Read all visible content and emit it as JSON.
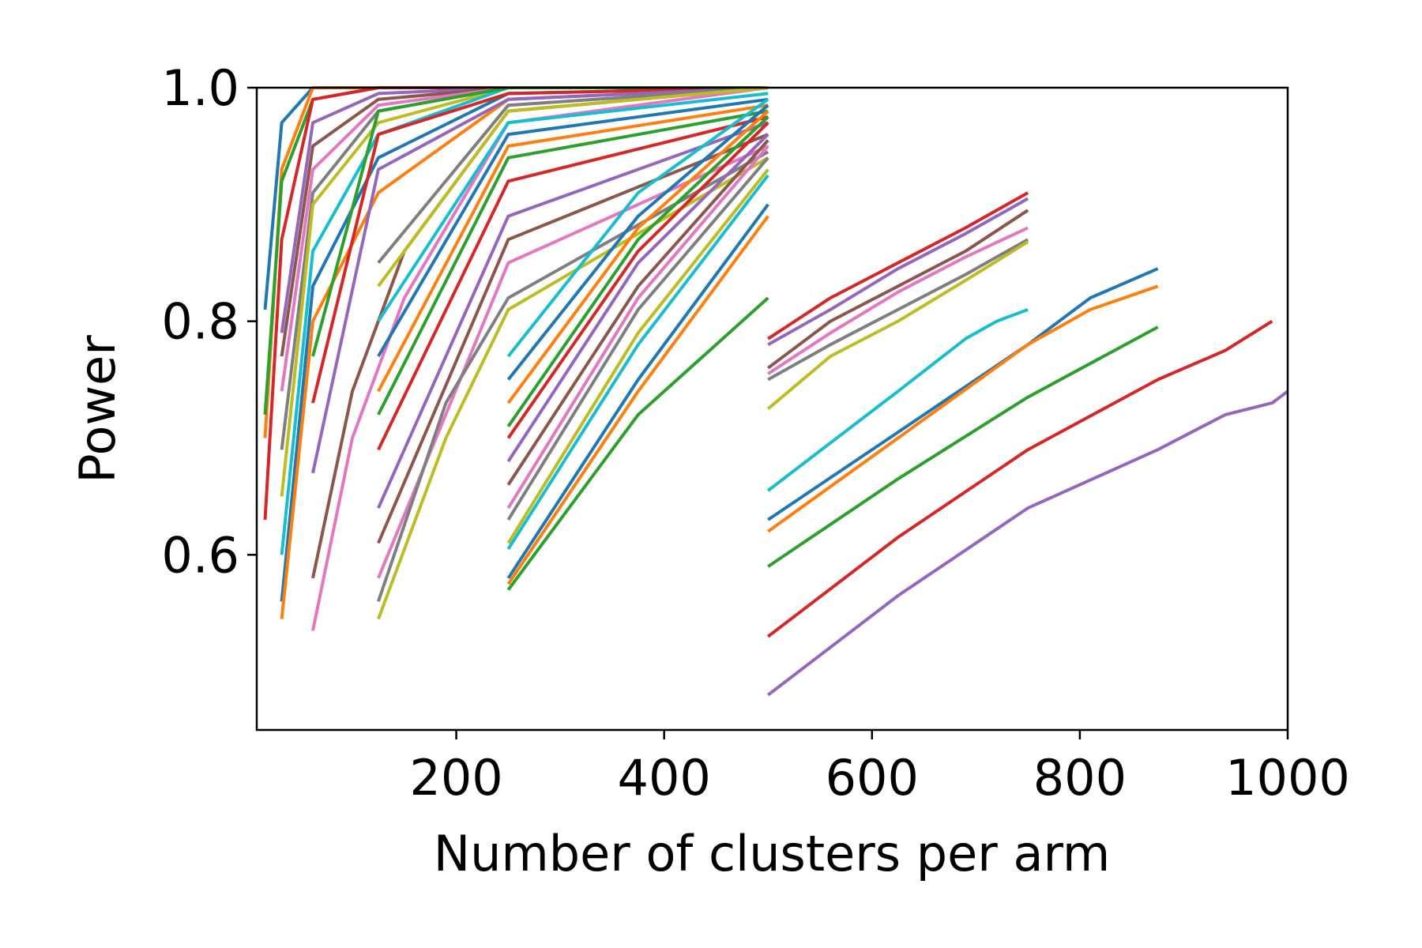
{
  "chart_data": {
    "type": "line",
    "title": "",
    "xlabel": "Number of clusters per arm",
    "ylabel": "Power",
    "xlim": [
      8,
      1000
    ],
    "ylim": [
      0.45,
      1.0
    ],
    "xticks": [
      {
        "value": 200,
        "label": "200"
      },
      {
        "value": 400,
        "label": "400"
      },
      {
        "value": 600,
        "label": "600"
      },
      {
        "value": 800,
        "label": "800"
      },
      {
        "value": 1000,
        "label": "1000"
      }
    ],
    "yticks": [
      {
        "value": 0.6,
        "label": "0.6"
      },
      {
        "value": 0.8,
        "label": "0.8"
      },
      {
        "value": 1.0,
        "label": "1.0"
      }
    ],
    "grid": false,
    "legend": "none",
    "color_cycle": [
      "#1f77b4",
      "#ff7f0e",
      "#2ca02c",
      "#d62728",
      "#9467bd",
      "#8c564b",
      "#e377c2",
      "#7f7f7f",
      "#bcbd22",
      "#17becf"
    ],
    "series": [
      {
        "x": [
          16,
          32,
          62,
          125,
          250
        ],
        "y": [
          0.81,
          0.97,
          1.0,
          1.0,
          1.0
        ]
      },
      {
        "x": [
          16,
          32,
          62,
          125,
          250
        ],
        "y": [
          0.7,
          0.93,
          1.0,
          1.0,
          1.0
        ]
      },
      {
        "x": [
          16,
          32,
          62,
          125,
          250
        ],
        "y": [
          0.72,
          0.92,
          0.99,
          1.0,
          1.0
        ]
      },
      {
        "x": [
          16,
          32,
          62,
          125,
          250
        ],
        "y": [
          0.63,
          0.87,
          0.99,
          1.0,
          1.0
        ]
      },
      {
        "x": [
          32,
          62,
          125,
          250,
          500
        ],
        "y": [
          0.79,
          0.97,
          0.995,
          1.0,
          1.0
        ]
      },
      {
        "x": [
          32,
          62,
          125,
          250,
          500
        ],
        "y": [
          0.77,
          0.95,
          0.99,
          1.0,
          1.0
        ]
      },
      {
        "x": [
          32,
          62,
          125,
          250,
          500
        ],
        "y": [
          0.74,
          0.93,
          0.985,
          1.0,
          1.0
        ]
      },
      {
        "x": [
          32,
          62,
          125,
          250,
          500
        ],
        "y": [
          0.69,
          0.91,
          0.98,
          1.0,
          1.0
        ]
      },
      {
        "x": [
          32,
          62,
          125,
          250,
          500
        ],
        "y": [
          0.65,
          0.9,
          0.97,
          1.0,
          1.0
        ]
      },
      {
        "x": [
          32,
          62,
          125,
          250,
          500
        ],
        "y": [
          0.6,
          0.86,
          0.96,
          1.0,
          1.0
        ]
      },
      {
        "x": [
          32,
          62,
          125,
          250,
          500
        ],
        "y": [
          0.56,
          0.83,
          0.94,
          0.995,
          1.0
        ]
      },
      {
        "x": [
          32,
          62,
          125,
          250,
          500
        ],
        "y": [
          0.545,
          0.8,
          0.91,
          0.99,
          1.0
        ]
      },
      {
        "x": [
          62,
          125,
          250,
          500
        ],
        "y": [
          0.77,
          0.98,
          1.0,
          1.0
        ]
      },
      {
        "x": [
          62,
          125,
          250,
          500
        ],
        "y": [
          0.73,
          0.96,
          0.995,
          1.0
        ]
      },
      {
        "x": [
          62,
          125,
          250,
          500
        ],
        "y": [
          0.67,
          0.93,
          0.99,
          1.0
        ]
      },
      {
        "x": [
          62,
          100,
          150,
          250,
          500
        ],
        "y": [
          0.58,
          0.74,
          0.86,
          0.98,
          1.0
        ]
      },
      {
        "x": [
          62,
          100,
          150,
          250,
          500
        ],
        "y": [
          0.535,
          0.7,
          0.82,
          0.97,
          1.0
        ]
      },
      {
        "x": [
          125,
          250,
          500
        ],
        "y": [
          0.85,
          0.985,
          1.0
        ]
      },
      {
        "x": [
          125,
          250,
          500
        ],
        "y": [
          0.83,
          0.98,
          1.0
        ]
      },
      {
        "x": [
          125,
          250,
          500
        ],
        "y": [
          0.8,
          0.97,
          0.995
        ]
      },
      {
        "x": [
          125,
          250,
          500
        ],
        "y": [
          0.77,
          0.96,
          0.99
        ]
      },
      {
        "x": [
          125,
          250,
          500
        ],
        "y": [
          0.74,
          0.95,
          0.985
        ]
      },
      {
        "x": [
          125,
          250,
          500
        ],
        "y": [
          0.72,
          0.94,
          0.98
        ]
      },
      {
        "x": [
          125,
          250,
          500
        ],
        "y": [
          0.69,
          0.92,
          0.975
        ]
      },
      {
        "x": [
          125,
          250,
          500
        ],
        "y": [
          0.64,
          0.89,
          0.97
        ]
      },
      {
        "x": [
          125,
          250,
          500
        ],
        "y": [
          0.61,
          0.87,
          0.96
        ]
      },
      {
        "x": [
          125,
          250,
          500
        ],
        "y": [
          0.58,
          0.85,
          0.95
        ]
      },
      {
        "x": [
          125,
          190,
          250,
          500
        ],
        "y": [
          0.56,
          0.73,
          0.82,
          0.945
        ]
      },
      {
        "x": [
          125,
          190,
          250,
          500
        ],
        "y": [
          0.545,
          0.7,
          0.81,
          0.94
        ]
      },
      {
        "x": [
          250,
          375,
          500
        ],
        "y": [
          0.77,
          0.91,
          0.99
        ]
      },
      {
        "x": [
          250,
          375,
          500
        ],
        "y": [
          0.75,
          0.89,
          0.985
        ]
      },
      {
        "x": [
          250,
          375,
          500
        ],
        "y": [
          0.73,
          0.88,
          0.98
        ]
      },
      {
        "x": [
          250,
          375,
          500
        ],
        "y": [
          0.71,
          0.87,
          0.975
        ]
      },
      {
        "x": [
          250,
          375,
          500
        ],
        "y": [
          0.7,
          0.86,
          0.97
        ]
      },
      {
        "x": [
          250,
          375,
          500
        ],
        "y": [
          0.68,
          0.85,
          0.96
        ]
      },
      {
        "x": [
          250,
          375,
          500
        ],
        "y": [
          0.66,
          0.83,
          0.955
        ]
      },
      {
        "x": [
          250,
          375,
          500
        ],
        "y": [
          0.64,
          0.82,
          0.95
        ]
      },
      {
        "x": [
          250,
          375,
          500
        ],
        "y": [
          0.63,
          0.81,
          0.94
        ]
      },
      {
        "x": [
          250,
          375,
          500
        ],
        "y": [
          0.61,
          0.79,
          0.93
        ]
      },
      {
        "x": [
          250,
          375,
          500
        ],
        "y": [
          0.605,
          0.78,
          0.925
        ]
      },
      {
        "x": [
          250,
          375,
          500
        ],
        "y": [
          0.58,
          0.75,
          0.9
        ]
      },
      {
        "x": [
          250,
          375,
          500
        ],
        "y": [
          0.575,
          0.74,
          0.89
        ]
      },
      {
        "x": [
          250,
          375,
          500
        ],
        "y": [
          0.57,
          0.72,
          0.82
        ]
      },
      {
        "x": [
          500,
          560,
          625,
          690,
          750
        ],
        "y": [
          0.785,
          0.82,
          0.85,
          0.88,
          0.91
        ]
      },
      {
        "x": [
          500,
          560,
          625,
          690,
          750
        ],
        "y": [
          0.78,
          0.81,
          0.845,
          0.875,
          0.905
        ]
      },
      {
        "x": [
          500,
          560,
          625,
          690,
          750
        ],
        "y": [
          0.76,
          0.8,
          0.83,
          0.86,
          0.895
        ]
      },
      {
        "x": [
          500,
          560,
          625,
          690,
          750
        ],
        "y": [
          0.755,
          0.79,
          0.825,
          0.855,
          0.88
        ]
      },
      {
        "x": [
          500,
          560,
          625,
          690,
          750
        ],
        "y": [
          0.75,
          0.78,
          0.81,
          0.84,
          0.87
        ]
      },
      {
        "x": [
          500,
          560,
          625,
          690,
          750
        ],
        "y": [
          0.725,
          0.77,
          0.8,
          0.835,
          0.868
        ]
      },
      {
        "x": [
          500,
          625,
          690,
          720,
          750
        ],
        "y": [
          0.655,
          0.74,
          0.785,
          0.8,
          0.81
        ]
      },
      {
        "x": [
          500,
          625,
          750,
          810,
          875
        ],
        "y": [
          0.63,
          0.705,
          0.78,
          0.82,
          0.845
        ]
      },
      {
        "x": [
          500,
          625,
          750,
          810,
          875
        ],
        "y": [
          0.62,
          0.7,
          0.78,
          0.81,
          0.83
        ]
      },
      {
        "x": [
          500,
          625,
          750,
          875
        ],
        "y": [
          0.59,
          0.665,
          0.735,
          0.795
        ]
      },
      {
        "x": [
          500,
          625,
          750,
          875,
          940,
          985
        ],
        "y": [
          0.53,
          0.615,
          0.69,
          0.75,
          0.775,
          0.8
        ]
      },
      {
        "x": [
          500,
          625,
          750,
          875,
          940,
          985,
          1000
        ],
        "y": [
          0.48,
          0.565,
          0.64,
          0.69,
          0.72,
          0.73,
          0.74
        ]
      }
    ]
  }
}
